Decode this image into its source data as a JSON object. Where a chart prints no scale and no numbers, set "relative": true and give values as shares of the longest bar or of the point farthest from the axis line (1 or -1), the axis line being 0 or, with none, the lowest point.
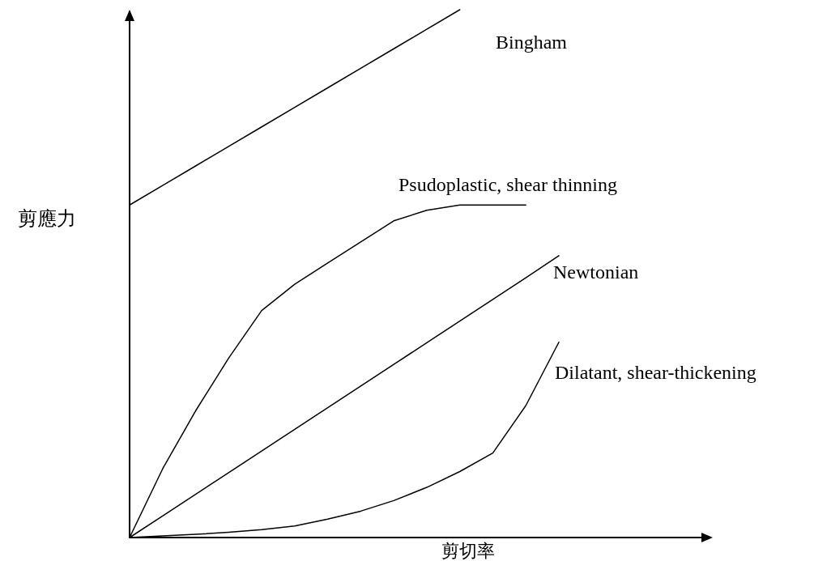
{
  "chart_data": {
    "type": "line",
    "relative": true,
    "xlabel": "剪切率",
    "ylabel": "剪應力",
    "categories": [
      null,
      null,
      null,
      null,
      null,
      null,
      null,
      null,
      null,
      null,
      null,
      null,
      null,
      null
    ],
    "series": [
      {
        "name": "Bingham",
        "color": "#000000",
        "values": [
          0.63,
          0.667,
          0.704,
          0.741,
          0.778,
          0.815,
          0.852,
          0.889,
          0.926,
          0.963,
          1.0,
          null,
          null,
          null
        ]
      },
      {
        "name": "Psudoplastic, shear thinning",
        "color": "#000000",
        "values": [
          0,
          0.13,
          0.24,
          0.34,
          0.43,
          0.48,
          0.52,
          0.56,
          0.6,
          0.62,
          0.63,
          0.63,
          0.63,
          null
        ]
      },
      {
        "name": "Newtonian",
        "color": "#000000",
        "values": [
          0,
          0.041,
          0.082,
          0.123,
          0.164,
          0.205,
          0.246,
          0.287,
          0.328,
          0.369,
          0.41,
          0.451,
          0.492,
          0.534
        ]
      },
      {
        "name": "Dilatant, shear-thickening",
        "color": "#000000",
        "values": [
          0,
          0.003,
          0.006,
          0.01,
          0.015,
          0.022,
          0.035,
          0.05,
          0.07,
          0.095,
          0.125,
          0.16,
          0.25,
          0.37
        ]
      }
    ],
    "legend": false,
    "grid": false,
    "marker": "none",
    "line_style": "solid"
  }
}
